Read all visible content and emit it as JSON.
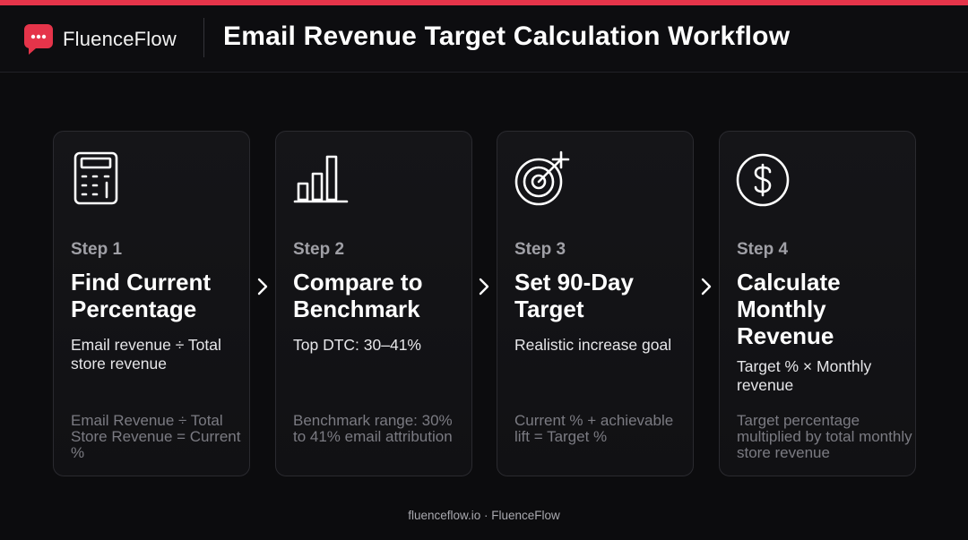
{
  "header": {
    "brand": "FluenceFlow",
    "title": "Email Revenue Target Calculation Workflow",
    "accent_color": "#e5344a"
  },
  "steps": [
    {
      "icon": "calculator-icon",
      "label": "Step 1",
      "title": "Find Current Percentage",
      "description": "Email revenue ÷ Total store revenue",
      "note": "Email Revenue ÷ Total Store Revenue = Current %"
    },
    {
      "icon": "bar-chart-icon",
      "label": "Step 2",
      "title": "Compare to Benchmark",
      "description": "Top DTC: 30–41%",
      "note": "Benchmark range: 30% to 41% email attribution"
    },
    {
      "icon": "target-icon",
      "label": "Step 3",
      "title": "Set 90-Day Target",
      "description": "Realistic increase goal",
      "note": "Current % + achievable lift = Target %"
    },
    {
      "icon": "dollar-icon",
      "label": "Step 4",
      "title": "Calculate Monthly Revenue",
      "description": "Target % × Monthly revenue",
      "note": "Target percentage multiplied by total monthly store revenue"
    }
  ],
  "footer": {
    "text": "fluenceflow.io · FluenceFlow"
  }
}
